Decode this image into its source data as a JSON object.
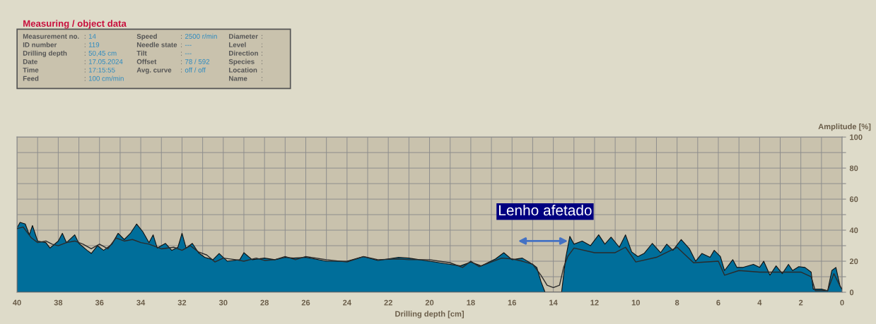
{
  "chart_data": {
    "type": "area",
    "xlabel": "Drilling depth [cm]",
    "ylabel": "Amplitude [%]",
    "xlim": [
      40,
      0
    ],
    "ylim": [
      0,
      100
    ],
    "xticks": [
      40,
      {
        "value": 39,
        "label": null
      },
      38,
      {
        "value": 37,
        "label": null
      },
      36,
      {
        "value": 35,
        "label": null
      },
      34,
      {
        "value": 33,
        "label": null
      },
      32,
      {
        "value": 31,
        "label": null
      },
      30,
      {
        "value": 29,
        "label": null
      },
      28,
      {
        "value": 27,
        "label": null
      },
      26,
      {
        "value": 25,
        "label": null
      },
      24,
      {
        "value": 23,
        "label": null
      },
      22,
      {
        "value": 21,
        "label": null
      },
      20,
      {
        "value": 19,
        "label": null
      },
      18,
      {
        "value": 17,
        "label": null
      },
      16,
      {
        "value": 15,
        "label": null
      },
      14,
      {
        "value": 13,
        "label": null
      },
      12,
      {
        "value": 11,
        "label": null
      },
      10,
      {
        "value": 9,
        "label": null
      },
      8,
      {
        "value": 7,
        "label": null
      },
      6,
      {
        "value": 5,
        "label": null
      },
      4,
      {
        "value": 3,
        "label": null
      },
      2,
      {
        "value": 1,
        "label": null
      },
      0
    ],
    "yticks": [
      0,
      {
        "value": 10,
        "label": null
      },
      20,
      {
        "value": 30,
        "label": null
      },
      40,
      {
        "value": 50,
        "label": null
      },
      60,
      {
        "value": 70,
        "label": null
      },
      80,
      {
        "value": 90,
        "label": null
      },
      100
    ],
    "grid": true,
    "series": [
      {
        "color": "#006e9a",
        "x": [
          40,
          39.85,
          39.6,
          39.4,
          39.25,
          39,
          38.6,
          38.4,
          38,
          37.8,
          37.6,
          37.2,
          37,
          36.6,
          36.4,
          36.1,
          35.8,
          35.4,
          35.1,
          34.8,
          34.5,
          34.2,
          33.9,
          33.6,
          33.4,
          33.2,
          32.8,
          32.5,
          32.2,
          32,
          31.8,
          31.5,
          31.2,
          30.9,
          30.5,
          30.2,
          29.8,
          29.2,
          29,
          28.6,
          28,
          27.5,
          27,
          26.6,
          26,
          25,
          24,
          23.2,
          22.5,
          21.5,
          21,
          20,
          19,
          18.5,
          18,
          17.5,
          16.8,
          16.4,
          16,
          15.5,
          15,
          14.8,
          14.6,
          14.4,
          13.6,
          13.4,
          13.2,
          13,
          12.6,
          12.2,
          11.8,
          11.5,
          11.2,
          10.8,
          10.5,
          10.2,
          9.9,
          9.6,
          9.2,
          8.8,
          8.5,
          8.2,
          7.8,
          7.4,
          7.1,
          6.8,
          6.4,
          6.2,
          5.9,
          5.7,
          5.3,
          5.1,
          4.8,
          4.3,
          4,
          3.8,
          3.5,
          3.2,
          2.9,
          2.6,
          2.4,
          2.1,
          1.8,
          1.5,
          1.4,
          1,
          0.7,
          0.5,
          0.3,
          0.1,
          0
        ],
        "values": [
          41.5,
          45,
          44,
          37,
          43,
          33,
          32,
          28.5,
          33,
          38,
          32,
          37,
          31.5,
          27,
          25,
          30,
          27,
          31,
          38,
          34,
          38,
          44,
          39,
          32,
          37,
          28.5,
          31.5,
          27,
          29,
          38,
          28.5,
          31.5,
          25.5,
          22.5,
          21,
          25,
          20,
          21,
          25.5,
          21,
          22,
          21,
          22.5,
          22,
          22.5,
          20,
          20,
          23,
          20.5,
          22.5,
          22,
          20,
          18,
          17,
          19.5,
          17,
          21.5,
          25.5,
          21,
          22,
          18,
          16,
          7,
          0,
          0,
          22,
          36,
          31,
          33,
          30,
          37,
          31,
          35.5,
          29,
          37,
          26,
          23,
          25,
          31.5,
          25.5,
          31,
          27,
          34,
          28,
          20,
          25,
          22.5,
          27,
          23,
          14,
          21,
          16,
          16,
          18,
          16,
          20,
          11,
          17,
          12,
          18,
          14,
          16.5,
          16,
          13,
          2,
          2,
          1,
          14,
          16,
          4,
          2
        ]
      },
      {
        "type": "line",
        "color": "#2b2b2b",
        "x": [
          40,
          39.7,
          39.3,
          39,
          38.6,
          38.3,
          38,
          37.6,
          37.2,
          36.8,
          36.4,
          36,
          35.6,
          35.2,
          34.8,
          34.4,
          34,
          33.6,
          33,
          32.4,
          32,
          31.6,
          31.2,
          30.8,
          30.4,
          30,
          29.4,
          29,
          28.4,
          28,
          27.5,
          27,
          26.5,
          26,
          25,
          24,
          23.2,
          22.5,
          21.5,
          21,
          20,
          19,
          18.4,
          18,
          17.6,
          17,
          16.5,
          16,
          15.5,
          15,
          14.6,
          14.3,
          14,
          13.7,
          13.5,
          13.3,
          13,
          12,
          11,
          10.5,
          10,
          9,
          8,
          7.2,
          6,
          5.7,
          5,
          4,
          3,
          2,
          1.5,
          1.3,
          0.7,
          0.4,
          0.1,
          0
        ],
        "values": [
          41,
          42,
          35,
          32,
          33,
          31,
          30,
          32,
          33,
          31,
          28,
          31,
          28,
          35,
          33,
          34,
          32,
          31,
          28,
          29,
          27,
          30,
          26,
          24,
          19.5,
          22,
          21,
          20,
          22,
          20.5,
          21,
          23,
          21,
          23,
          21,
          19.5,
          23,
          21,
          21.5,
          21,
          21,
          19,
          16,
          20,
          16.5,
          19.5,
          22,
          21.5,
          20,
          18,
          11,
          4.5,
          3,
          4.5,
          16,
          23,
          28.5,
          25.5,
          25.5,
          29,
          19.5,
          22.5,
          29,
          19,
          20,
          11,
          14,
          13,
          13,
          13,
          10,
          1,
          1,
          12,
          4,
          2
        ]
      }
    ],
    "annotations": [
      "Measuring / object data",
      "Measurement no.: 14",
      "ID number: 119",
      "Drilling depth: 50,45 cm",
      "Date: 17.05.2024",
      "Time: 17:15:55",
      "Feed: 100 cm/min",
      "Speed: 2500 r/min",
      "Needle state: ---",
      "Tilt: ---",
      "Offset: 78 / 592",
      "Avg. curve: off / off",
      "Diameter:",
      "Level:",
      "Direction:",
      "Species:",
      "Location:",
      "Name:",
      "Lenho afetado"
    ]
  }
}
